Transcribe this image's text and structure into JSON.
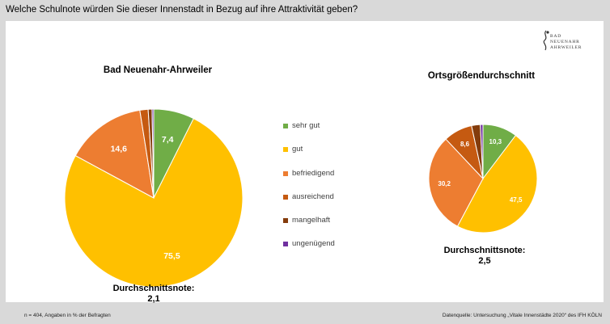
{
  "question": "Welche Schulnote würden Sie dieser Innenstadt in Bezug auf ihre Attraktivität geben?",
  "logo": {
    "line1": "BAD",
    "line2": "NEUENAHR",
    "line3": "AHRWEILER"
  },
  "footer": {
    "left": "n = 404, Angaben in % der Befragten",
    "right": "Datenquelle: Untersuchung „Vitale Innenstädte 2020“ des IFH KÖLN"
  },
  "colors": {
    "sehr_gut": "#70ad47",
    "gut": "#ffc000",
    "befriedigend": "#ed7d31",
    "ausreichend": "#c55a11",
    "mangelhaft": "#843c0c",
    "ungenuegend": "#7030a0"
  },
  "legend": [
    "sehr gut",
    "gut",
    "befriedigend",
    "ausreichend",
    "mangelhaft",
    "ungenügend"
  ],
  "chart_data": [
    {
      "type": "pie",
      "title": "Bad Neuenahr-Ahrweiler",
      "categories": [
        "sehr gut",
        "gut",
        "befriedigend",
        "ausreichend",
        "mangelhaft",
        "ungenügend"
      ],
      "values": [
        7.4,
        75.5,
        14.6,
        1.5,
        0.7,
        0.3
      ],
      "data_labels": [
        "7,4",
        "75,5",
        "14,6",
        "",
        "",
        ""
      ],
      "average_label": "Durchschnittsnote:",
      "average_value": "2,1"
    },
    {
      "type": "pie",
      "title": "Ortsgrößendurchschnitt",
      "categories": [
        "sehr gut",
        "gut",
        "befriedigend",
        "ausreichend",
        "mangelhaft",
        "ungenügend"
      ],
      "values": [
        10.3,
        47.5,
        30.2,
        8.6,
        2.6,
        0.8
      ],
      "data_labels": [
        "10,3",
        "47,5",
        "30,2",
        "8,6",
        "",
        ""
      ],
      "average_label": "Durchschnittsnote:",
      "average_value": "2,5"
    }
  ]
}
